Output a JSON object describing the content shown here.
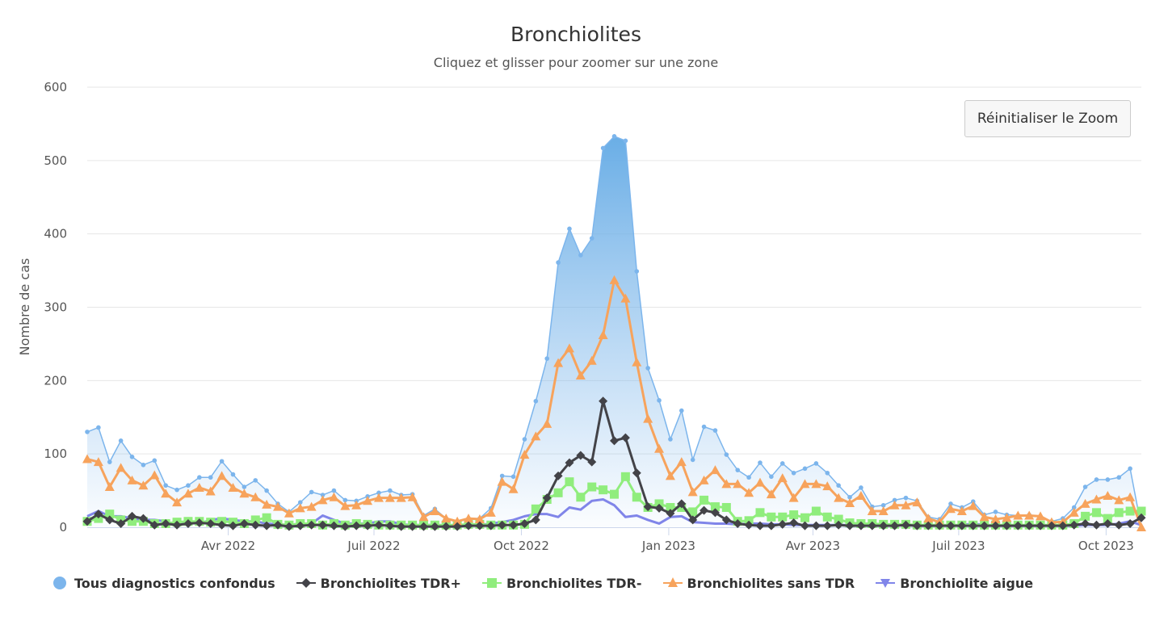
{
  "chart_data": {
    "type": "line",
    "title": "Bronchiolites",
    "subtitle": "Cliquez et glisser pour zoomer sur une zone",
    "ylabel": "Nombre de cas",
    "xlabel": "",
    "ylim": [
      0,
      600
    ],
    "yticks": [
      0,
      100,
      200,
      300,
      400,
      500,
      600
    ],
    "xlim": [
      "2022-01-03",
      "2023-10-23"
    ],
    "xticks": [
      {
        "date": "2022-04-01",
        "label": "Avr 2022"
      },
      {
        "date": "2022-07-01",
        "label": "Juil 2022"
      },
      {
        "date": "2022-10-01",
        "label": "Oct 2022"
      },
      {
        "date": "2023-01-01",
        "label": "Jan 2023"
      },
      {
        "date": "2023-04-01",
        "label": "Avr 2023"
      },
      {
        "date": "2023-07-01",
        "label": "Juil 2023"
      },
      {
        "date": "2023-10-01",
        "label": "Oct 2023"
      }
    ],
    "grid": true,
    "legend_position": "bottom",
    "x": [
      "2022-01-03",
      "2022-01-10",
      "2022-01-17",
      "2022-01-24",
      "2022-01-31",
      "2022-02-07",
      "2022-02-14",
      "2022-02-21",
      "2022-02-28",
      "2022-03-07",
      "2022-03-14",
      "2022-03-21",
      "2022-03-28",
      "2022-04-04",
      "2022-04-11",
      "2022-04-18",
      "2022-04-25",
      "2022-05-02",
      "2022-05-09",
      "2022-05-16",
      "2022-05-23",
      "2022-05-30",
      "2022-06-06",
      "2022-06-13",
      "2022-06-20",
      "2022-06-27",
      "2022-07-04",
      "2022-07-11",
      "2022-07-18",
      "2022-07-25",
      "2022-08-01",
      "2022-08-08",
      "2022-08-15",
      "2022-08-22",
      "2022-08-29",
      "2022-09-05",
      "2022-09-12",
      "2022-09-19",
      "2022-09-26",
      "2022-10-03",
      "2022-10-10",
      "2022-10-17",
      "2022-10-24",
      "2022-10-31",
      "2022-11-07",
      "2022-11-14",
      "2022-11-21",
      "2022-11-28",
      "2022-12-05",
      "2022-12-12",
      "2022-12-19",
      "2022-12-26",
      "2023-01-02",
      "2023-01-09",
      "2023-01-16",
      "2023-01-23",
      "2023-01-30",
      "2023-02-06",
      "2023-02-13",
      "2023-02-20",
      "2023-02-27",
      "2023-03-06",
      "2023-03-13",
      "2023-03-20",
      "2023-03-27",
      "2023-04-03",
      "2023-04-10",
      "2023-04-17",
      "2023-04-24",
      "2023-05-01",
      "2023-05-08",
      "2023-05-15",
      "2023-05-22",
      "2023-05-29",
      "2023-06-05",
      "2023-06-12",
      "2023-06-19",
      "2023-06-26",
      "2023-07-03",
      "2023-07-10",
      "2023-07-17",
      "2023-07-24",
      "2023-07-31",
      "2023-08-07",
      "2023-08-14",
      "2023-08-21",
      "2023-08-28",
      "2023-09-04",
      "2023-09-11",
      "2023-09-18",
      "2023-09-25",
      "2023-10-02",
      "2023-10-09",
      "2023-10-16",
      "2023-10-23"
    ],
    "series": [
      {
        "name": "Tous diagnostics confondus",
        "color": "#7cb5ec",
        "marker": "circle",
        "area": true,
        "values": [
          130,
          136,
          89,
          118,
          96,
          85,
          91,
          57,
          51,
          57,
          68,
          68,
          90,
          72,
          55,
          64,
          50,
          32,
          21,
          34,
          48,
          44,
          50,
          37,
          36,
          42,
          47,
          50,
          44,
          45,
          16,
          25,
          12,
          8,
          12,
          12,
          26,
          70,
          69,
          120,
          172,
          230,
          361,
          407,
          371,
          394,
          517,
          533,
          527,
          349,
          217,
          173,
          120,
          159,
          92,
          137,
          132,
          99,
          78,
          68,
          88,
          69,
          87,
          74,
          80,
          87,
          74,
          57,
          41,
          54,
          28,
          30,
          37,
          40,
          36,
          14,
          11,
          32,
          27,
          35,
          17,
          21,
          17,
          16,
          17,
          15,
          8,
          12,
          27,
          55,
          65,
          65,
          68,
          80,
          0
        ]
      },
      {
        "name": "Bronchiolites TDR+",
        "color": "#434348",
        "marker": "diamond",
        "values": [
          8,
          18,
          10,
          5,
          15,
          12,
          3,
          5,
          3,
          5,
          6,
          5,
          3,
          2,
          5,
          3,
          2,
          3,
          1,
          2,
          3,
          3,
          2,
          1,
          2,
          2,
          3,
          2,
          1,
          1,
          1,
          1,
          1,
          1,
          2,
          2,
          2,
          3,
          3,
          5,
          10,
          40,
          70,
          88,
          98,
          89,
          172,
          118,
          122,
          74,
          28,
          26,
          19,
          32,
          10,
          23,
          20,
          10,
          5,
          3,
          2,
          2,
          4,
          6,
          2,
          2,
          2,
          3,
          2,
          2,
          2,
          2,
          2,
          3,
          2,
          2,
          2,
          2,
          2,
          2,
          2,
          2,
          2,
          2,
          2,
          2,
          2,
          2,
          3,
          5,
          3,
          5,
          3,
          5,
          13
        ]
      },
      {
        "name": "Bronchiolites TDR-",
        "color": "#90ed7d",
        "marker": "square",
        "values": [
          8,
          12,
          18,
          10,
          8,
          8,
          5,
          5,
          7,
          8,
          8,
          7,
          8,
          7,
          5,
          10,
          13,
          4,
          3,
          5,
          5,
          3,
          5,
          3,
          5,
          4,
          3,
          3,
          3,
          3,
          3,
          3,
          3,
          3,
          4,
          4,
          3,
          3,
          3,
          4,
          25,
          38,
          47,
          62,
          41,
          55,
          51,
          45,
          69,
          41,
          27,
          32,
          27,
          27,
          21,
          37,
          28,
          27,
          8,
          9,
          20,
          14,
          14,
          17,
          13,
          22,
          14,
          11,
          6,
          5,
          5,
          4,
          4,
          4,
          3,
          3,
          3,
          3,
          3,
          3,
          3,
          3,
          3,
          3,
          3,
          3,
          3,
          3,
          5,
          15,
          20,
          12,
          20,
          22,
          22
        ]
      },
      {
        "name": "Bronchiolites sans TDR",
        "color": "#f7a35c",
        "marker": "triangle",
        "values": [
          93,
          89,
          55,
          81,
          64,
          57,
          71,
          46,
          34,
          46,
          54,
          49,
          70,
          54,
          46,
          41,
          31,
          28,
          19,
          26,
          28,
          37,
          41,
          29,
          30,
          36,
          40,
          40,
          40,
          41,
          14,
          22,
          12,
          8,
          12,
          11,
          20,
          62,
          52,
          99,
          124,
          141,
          224,
          244,
          207,
          227,
          262,
          337,
          312,
          225,
          148,
          107,
          70,
          89,
          48,
          64,
          78,
          59,
          59,
          47,
          61,
          45,
          67,
          40,
          59,
          59,
          56,
          40,
          33,
          43,
          22,
          22,
          30,
          30,
          34,
          12,
          7,
          25,
          22,
          29,
          14,
          11,
          13,
          16,
          16,
          15,
          7,
          7,
          20,
          32,
          38,
          43,
          37,
          41,
          0
        ]
      },
      {
        "name": "Bronchiolite aigue",
        "color": "#8085e9",
        "marker": "triangle-down",
        "values": [
          15,
          22,
          15,
          15,
          12,
          10,
          10,
          8,
          3,
          6,
          5,
          10,
          12,
          10,
          8,
          8,
          5,
          4,
          3,
          5,
          5,
          16,
          10,
          5,
          5,
          5,
          8,
          8,
          4,
          3,
          3,
          3,
          2,
          2,
          2,
          3,
          5,
          7,
          10,
          15,
          18,
          18,
          14,
          27,
          24,
          36,
          38,
          30,
          14,
          16,
          10,
          5,
          14,
          15,
          7,
          6,
          5,
          5,
          4,
          5,
          5,
          4,
          4,
          3,
          3,
          3,
          3,
          3,
          3,
          3,
          3,
          3,
          3,
          3,
          2,
          2,
          2,
          2,
          3,
          5,
          3,
          2,
          2,
          2,
          2,
          2,
          2,
          2,
          2,
          3,
          3,
          3,
          5,
          8,
          3
        ]
      }
    ]
  },
  "controls": {
    "reset_zoom_label": "Réinitialiser le Zoom"
  }
}
